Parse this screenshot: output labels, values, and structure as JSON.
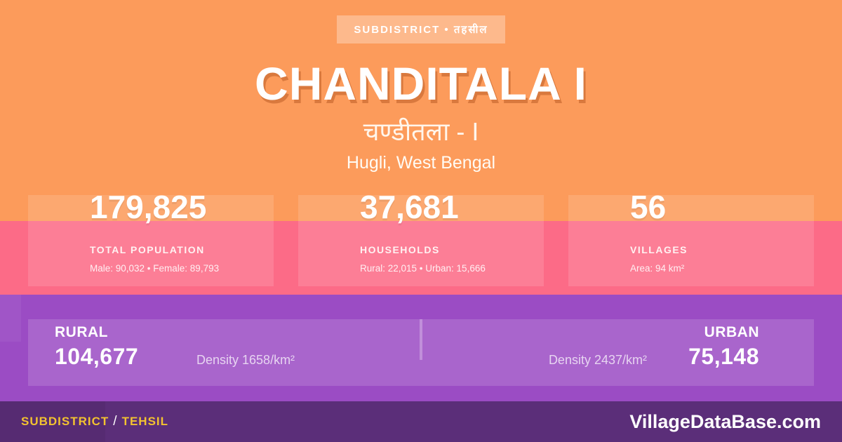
{
  "page": {
    "badge": "SUBDISTRICT • तहसील",
    "title": "CHANDITALA I",
    "native_name": "चण्डीतला - I",
    "region": "Hugli, West Bengal"
  },
  "stats": [
    {
      "value": "179,825",
      "label": "TOTAL POPULATION",
      "detail": "Male: 90,032 • Female: 89,793"
    },
    {
      "value": "37,681",
      "label": "HOUSEHOLDS",
      "detail": "Rural: 22,015 • Urban: 15,666"
    },
    {
      "value": "56",
      "label": "VILLAGES",
      "detail": "Area: 94 km²"
    }
  ],
  "rural_urban": {
    "rural": {
      "label": "RURAL",
      "value": "104,677",
      "density": "Density 1658/km²"
    },
    "urban": {
      "label": "URBAN",
      "value": "75,148",
      "density": "Density 2437/km²"
    }
  },
  "footer": {
    "type_label": "SUBDISTRICT",
    "separator": "/",
    "type_label_alt": "TEHSIL",
    "website": "VillageDataBase.com"
  },
  "colors": {
    "orange_bg": "#FC9B5B",
    "pink_band": "#FC6B87",
    "purple_band": "#9B4CC4",
    "footer_bg": "#5B2E79",
    "accent_yellow": "#F2C230",
    "text_white": "#FFFFFF"
  }
}
